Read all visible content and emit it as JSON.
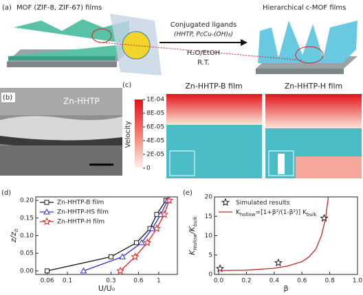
{
  "panel_a": {
    "label": "(a)",
    "left_title": "MOF (ZIF-8, ZIF-67) films",
    "right_title": "Hierarchical c-MOF films",
    "arrow_top": "Conjugated ligands",
    "arrow_top2": "(HHTP, PcCu-(OH)₈)",
    "arrow_bottom": "H₂O/EtOH",
    "arrow_bottom2": "R.T."
  },
  "panel_b": {
    "label": "(b)",
    "caption": "Zn-HHTP"
  },
  "panel_c": {
    "label": "(c)",
    "titles": [
      "Zn-HHTP-B film",
      "Zn-HHTP-H film"
    ],
    "colorbar": {
      "title": "Velocity",
      "lim": [
        0,
        0.0001
      ],
      "ticks": [
        {
          "value": 0.0001,
          "label": "1E-04"
        },
        {
          "value": 8e-05,
          "label": "8E-05"
        },
        {
          "value": 6e-05,
          "label": "6E-05"
        },
        {
          "value": 4e-05,
          "label": "4E-05"
        },
        {
          "value": 2e-05,
          "label": "2E-05"
        },
        0
      ]
    }
  },
  "chart_data": [
    {
      "type": "line",
      "panel": "(d)",
      "log_x": true,
      "x_label": "U/U₀",
      "y_label": [
        "z/z",
        "0"
      ],
      "xlim": [
        0.045,
        1.6
      ],
      "xticks": [
        0.06,
        0.1,
        0.3,
        0.6,
        1
      ],
      "ylim": [
        -0.01,
        0.21
      ],
      "yticks": [
        {
          "value": 0,
          "label": "0.00"
        },
        {
          "value": 0.05,
          "label": "0.05"
        },
        {
          "value": 0.1,
          "label": "0.10"
        },
        {
          "value": 0.15,
          "label": "0.15"
        },
        {
          "value": 0.2,
          "label": "0.20"
        }
      ],
      "series": [
        {
          "name": "Zn-HHTP-B film",
          "color": "#111111",
          "marker": "square",
          "x": [
            0.06,
            0.3,
            0.57,
            0.8,
            0.95,
            1.2
          ],
          "values": [
            0,
            0.04,
            0.08,
            0.12,
            0.16,
            0.2
          ]
        },
        {
          "name": "Zn-HHTP-HS film",
          "color": "#2a2ad0",
          "marker": "triangle",
          "x": [
            0.15,
            0.4,
            0.65,
            0.85,
            1.05,
            1.25
          ],
          "values": [
            0,
            0.04,
            0.08,
            0.12,
            0.16,
            0.2
          ]
        },
        {
          "name": "Zn-HHTP-H film",
          "color": "#e02020",
          "marker": "star",
          "x": [
            0.38,
            0.55,
            0.75,
            0.95,
            1.15,
            1.3
          ],
          "values": [
            0,
            0.04,
            0.08,
            0.12,
            0.16,
            0.2
          ]
        }
      ]
    },
    {
      "type": "line",
      "panel": "(e)",
      "log_x": false,
      "x_label": "β",
      "y_label": [
        "K",
        "Hollow",
        "/K",
        "bulk"
      ],
      "xlim": [
        -0.03,
        1.0
      ],
      "xticks": [
        {
          "value": 0,
          "label": "0.0"
        },
        {
          "value": 0.2,
          "label": "0.2"
        },
        {
          "value": 0.4,
          "label": "0.4"
        },
        {
          "value": 0.6,
          "label": "0.6"
        },
        {
          "value": 0.8,
          "label": "0.8"
        },
        {
          "value": 1,
          "label": "1.0"
        }
      ],
      "ylim": [
        0,
        20
      ],
      "yticks": [
        0,
        5,
        10,
        15,
        20
      ],
      "series": [
        {
          "name": [
            "Simulated results"
          ],
          "color": "#111111",
          "marker": "star",
          "x": [
            0.01,
            0.43,
            0.76
          ],
          "values": [
            1.5,
            3,
            14.5
          ]
        },
        {
          "name": [
            "K",
            "hollow",
            "=[1+β²/(1-β²)] K",
            "bulk"
          ],
          "color": "#c0282a",
          "marker": "none",
          "x": [
            0,
            0.2,
            0.4,
            0.5,
            0.6,
            0.65,
            0.7,
            0.74,
            0.77,
            0.79
          ],
          "values": [
            1,
            1.1,
            1.6,
            2.2,
            3.3,
            4.5,
            6.5,
            10,
            14.5,
            20
          ]
        }
      ]
    }
  ]
}
